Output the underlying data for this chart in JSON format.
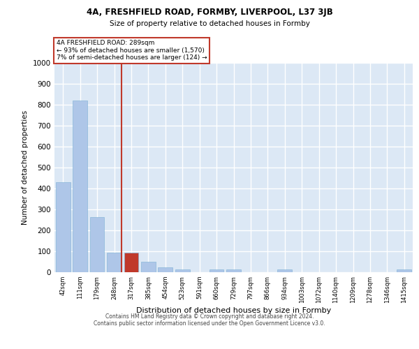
{
  "title1": "4A, FRESHFIELD ROAD, FORMBY, LIVERPOOL, L37 3JB",
  "title2": "Size of property relative to detached houses in Formby",
  "xlabel": "Distribution of detached houses by size in Formby",
  "ylabel": "Number of detached properties",
  "categories": [
    "42sqm",
    "111sqm",
    "179sqm",
    "248sqm",
    "317sqm",
    "385sqm",
    "454sqm",
    "523sqm",
    "591sqm",
    "660sqm",
    "729sqm",
    "797sqm",
    "866sqm",
    "934sqm",
    "1003sqm",
    "1072sqm",
    "1140sqm",
    "1209sqm",
    "1278sqm",
    "1346sqm",
    "1415sqm"
  ],
  "values": [
    430,
    820,
    265,
    93,
    93,
    50,
    25,
    12,
    0,
    12,
    12,
    0,
    0,
    12,
    0,
    0,
    0,
    0,
    0,
    0,
    12
  ],
  "bar_color": "#aec6e8",
  "bar_edge_color": "#7bafd4",
  "highlight_bar_index": 4,
  "highlight_bar_color": "#c0392b",
  "vline_index": 3,
  "vline_color": "#c0392b",
  "annotation_line1": "4A FRESHFIELD ROAD: 289sqm",
  "annotation_line2": "← 93% of detached houses are smaller (1,570)",
  "annotation_line3": "7% of semi-detached houses are larger (124) →",
  "annotation_box_edgecolor": "#c0392b",
  "footer_line1": "Contains HM Land Registry data © Crown copyright and database right 2024.",
  "footer_line2": "Contains public sector information licensed under the Open Government Licence v3.0.",
  "ylim": [
    0,
    1000
  ],
  "yticks": [
    0,
    100,
    200,
    300,
    400,
    500,
    600,
    700,
    800,
    900,
    1000
  ],
  "plot_bg_color": "#dce8f5",
  "grid_color": "#ffffff",
  "fig_bg_color": "#ffffff"
}
